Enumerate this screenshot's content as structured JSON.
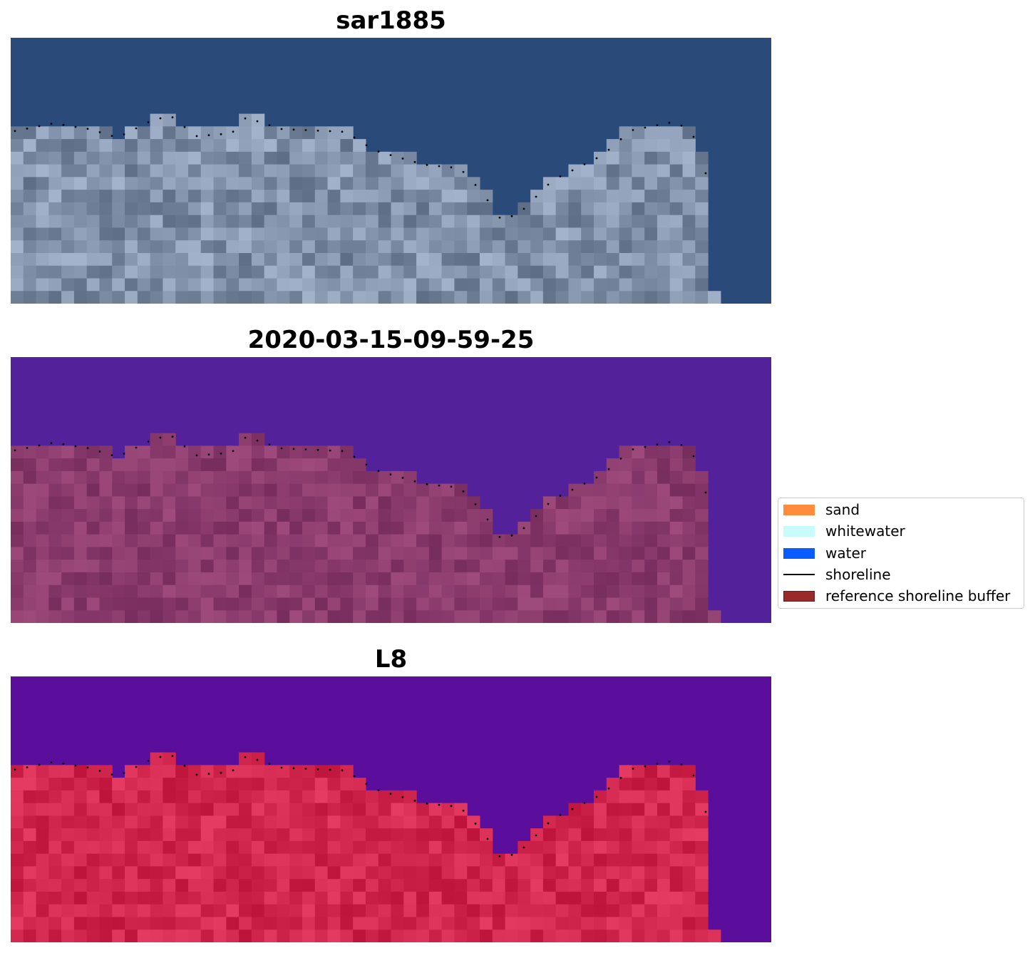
{
  "figure": {
    "panels": [
      {
        "title": "sar1885",
        "kind": "rgb",
        "base_color": "#2a4a7a"
      },
      {
        "title": "2020-03-15-09-59-25",
        "kind": "classified",
        "base_color": "#53229a"
      },
      {
        "title": "L8",
        "kind": "index",
        "base_color": "#5b0d9c"
      }
    ]
  },
  "legend": {
    "items": [
      {
        "label": "sand",
        "type": "patch",
        "color": "#ff8c3d"
      },
      {
        "label": "whitewater",
        "type": "patch",
        "color": "#c8fcfc"
      },
      {
        "label": "water",
        "type": "patch",
        "color": "#0a5cff"
      },
      {
        "label": "shoreline",
        "type": "line",
        "color": "#000000"
      },
      {
        "label": "reference shoreline buffer",
        "type": "patch",
        "color": "#9a2a2a"
      }
    ]
  }
}
